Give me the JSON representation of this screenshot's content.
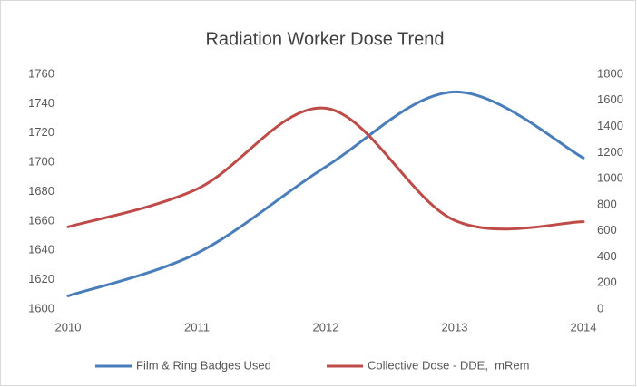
{
  "chart_data": {
    "type": "line",
    "title": "Radiation Worker Dose Trend",
    "x": [
      2010,
      2011,
      2012,
      2013,
      2014
    ],
    "xlim": [
      2010,
      2014
    ],
    "xticks": [
      2010,
      2011,
      2012,
      2013,
      2014
    ],
    "ylim": [
      1600,
      1760
    ],
    "yticks": [
      1600,
      1620,
      1640,
      1660,
      1680,
      1700,
      1720,
      1740,
      1760
    ],
    "y2lim": [
      0,
      1800
    ],
    "y2ticks": [
      0,
      200,
      400,
      600,
      800,
      1000,
      1200,
      1400,
      1600,
      1800
    ],
    "smooth": true,
    "legend": "bottom",
    "series": [
      {
        "name": "Film & Ring Badges Used",
        "color": "#4a7ebb",
        "values": [
          1609,
          1638,
          1697,
          1748,
          1703
        ]
      },
      {
        "name": "Collective Dose - DDE,  mRem",
        "color": "#be4b48",
        "axis": "y2",
        "values": [
          630,
          920,
          1540,
          680,
          670
        ]
      }
    ]
  }
}
